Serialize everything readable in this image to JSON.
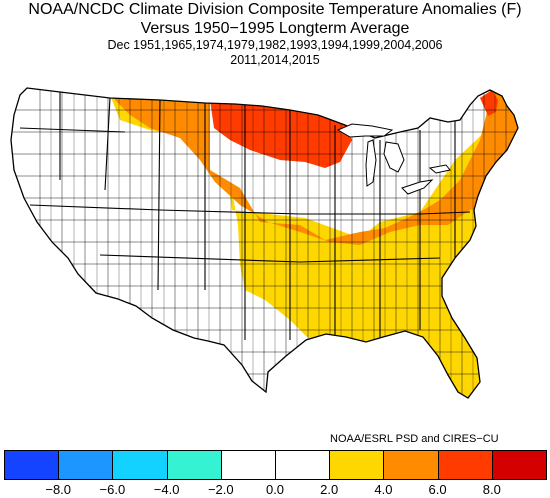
{
  "title": {
    "line1": "NOAA/NCDC Climate Division Composite Temperature Anomalies (F)",
    "line2": "Versus 1950−1995 Longterm Average",
    "line3": "Dec   1951,1965,1974,1979,1982,1993,1994,1999,2004,2006",
    "line4": "2011,2014,2015"
  },
  "credit": "NOAA/ESRL PSD and CIRES−CU",
  "legend": {
    "colors": [
      "#1444ff",
      "#1e96ff",
      "#14d2ff",
      "#34f2d2",
      "#ffffff",
      "#ffffff",
      "#ffd700",
      "#ff8c00",
      "#ff3b00",
      "#d40000"
    ],
    "ticks": [
      "−8.0",
      "−6.0",
      "−4.0",
      "−2.0",
      "0.0",
      "2.0",
      "4.0",
      "6.0",
      "8.0"
    ]
  },
  "map": {
    "colors": {
      "neutral": "#ffffff",
      "light": "#ffd700",
      "medium": "#ff8c00",
      "strong": "#ff3b00"
    }
  }
}
